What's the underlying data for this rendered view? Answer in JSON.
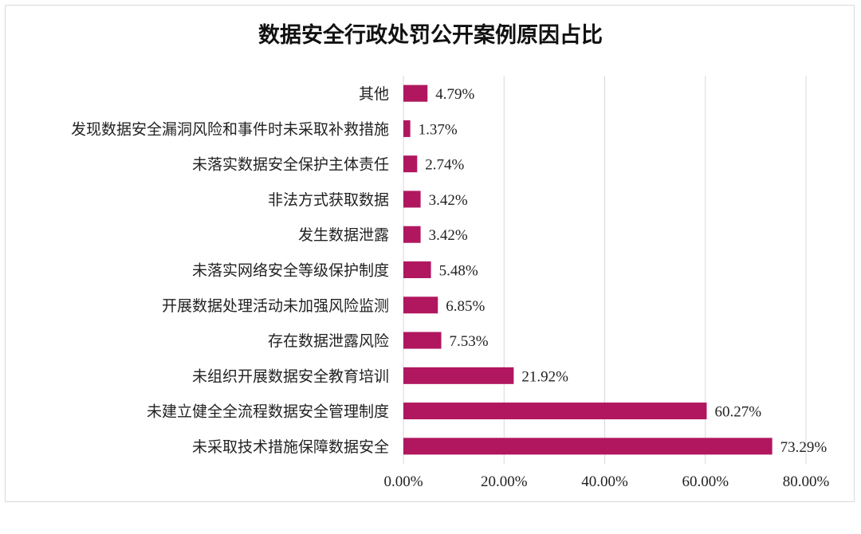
{
  "chart_data": {
    "type": "bar",
    "orientation": "horizontal",
    "title": "数据安全行政处罚公开案例原因占比",
    "xlabel": "",
    "ylabel": "",
    "xlim": [
      0,
      80
    ],
    "x_ticks": [
      "0.00%",
      "20.00%",
      "40.00%",
      "60.00%",
      "80.00%"
    ],
    "grid": "vertical",
    "categories": [
      "其他",
      "发现数据安全漏洞风险和事件时未采取补救措施",
      "未落实数据安全保护主体责任",
      "非法方式获取数据",
      "发生数据泄露",
      "未落实网络安全等级保护制度",
      "开展数据处理活动未加强风险监测",
      "存在数据泄露风险",
      "未组织开展数据安全教育培训",
      "未建立健全全流程数据安全管理制度",
      "未采取技术措施保障数据安全"
    ],
    "values": [
      4.79,
      1.37,
      2.74,
      3.42,
      3.42,
      5.48,
      6.85,
      7.53,
      21.92,
      60.27,
      73.29
    ],
    "labels": [
      "4.79%",
      "1.37%",
      "2.74%",
      "3.42%",
      "3.42%",
      "5.48%",
      "6.85%",
      "7.53%",
      "21.92%",
      "60.27%",
      "73.29%"
    ],
    "bar_color": "#B0175F"
  }
}
